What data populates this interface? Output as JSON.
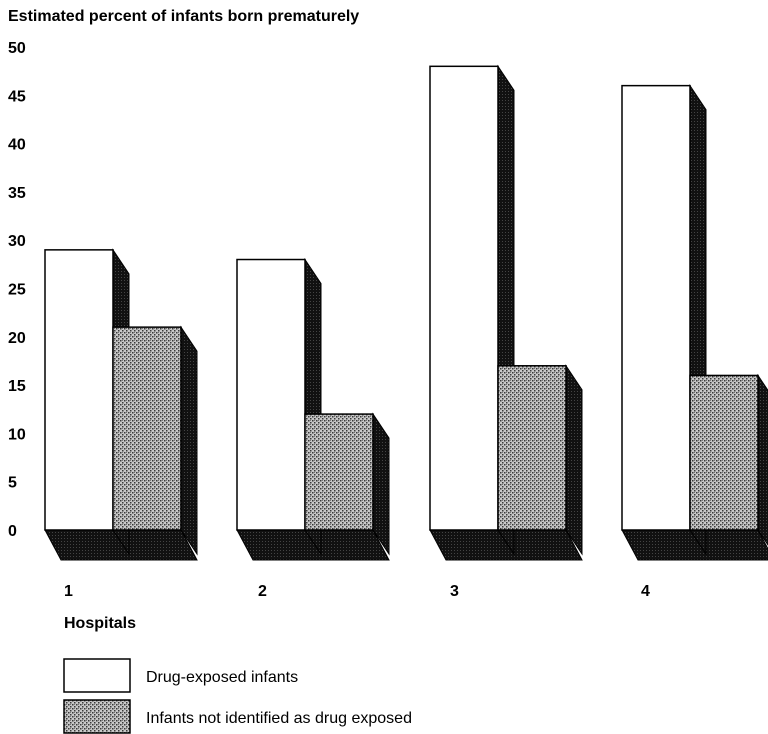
{
  "chart_data": {
    "type": "bar",
    "title": "",
    "ylabel": "Estimated percent of infants born prematurely",
    "xlabel": "Hospitals",
    "categories": [
      "1",
      "2",
      "3",
      "4"
    ],
    "yticks": [
      "0",
      "5",
      "10",
      "15",
      "20",
      "25",
      "30",
      "35",
      "40",
      "45",
      "50"
    ],
    "ylim": [
      0,
      50
    ],
    "grid": false,
    "legend_position": "bottom-left",
    "series": [
      {
        "name": "Drug-exposed infants",
        "values": [
          29,
          28,
          48,
          46
        ],
        "color": "#ffffff",
        "pattern": "none"
      },
      {
        "name": "Infants not identified as drug exposed",
        "values": [
          21,
          12,
          17,
          16
        ],
        "color": "#9a9a9a",
        "pattern": "stipple"
      }
    ]
  }
}
